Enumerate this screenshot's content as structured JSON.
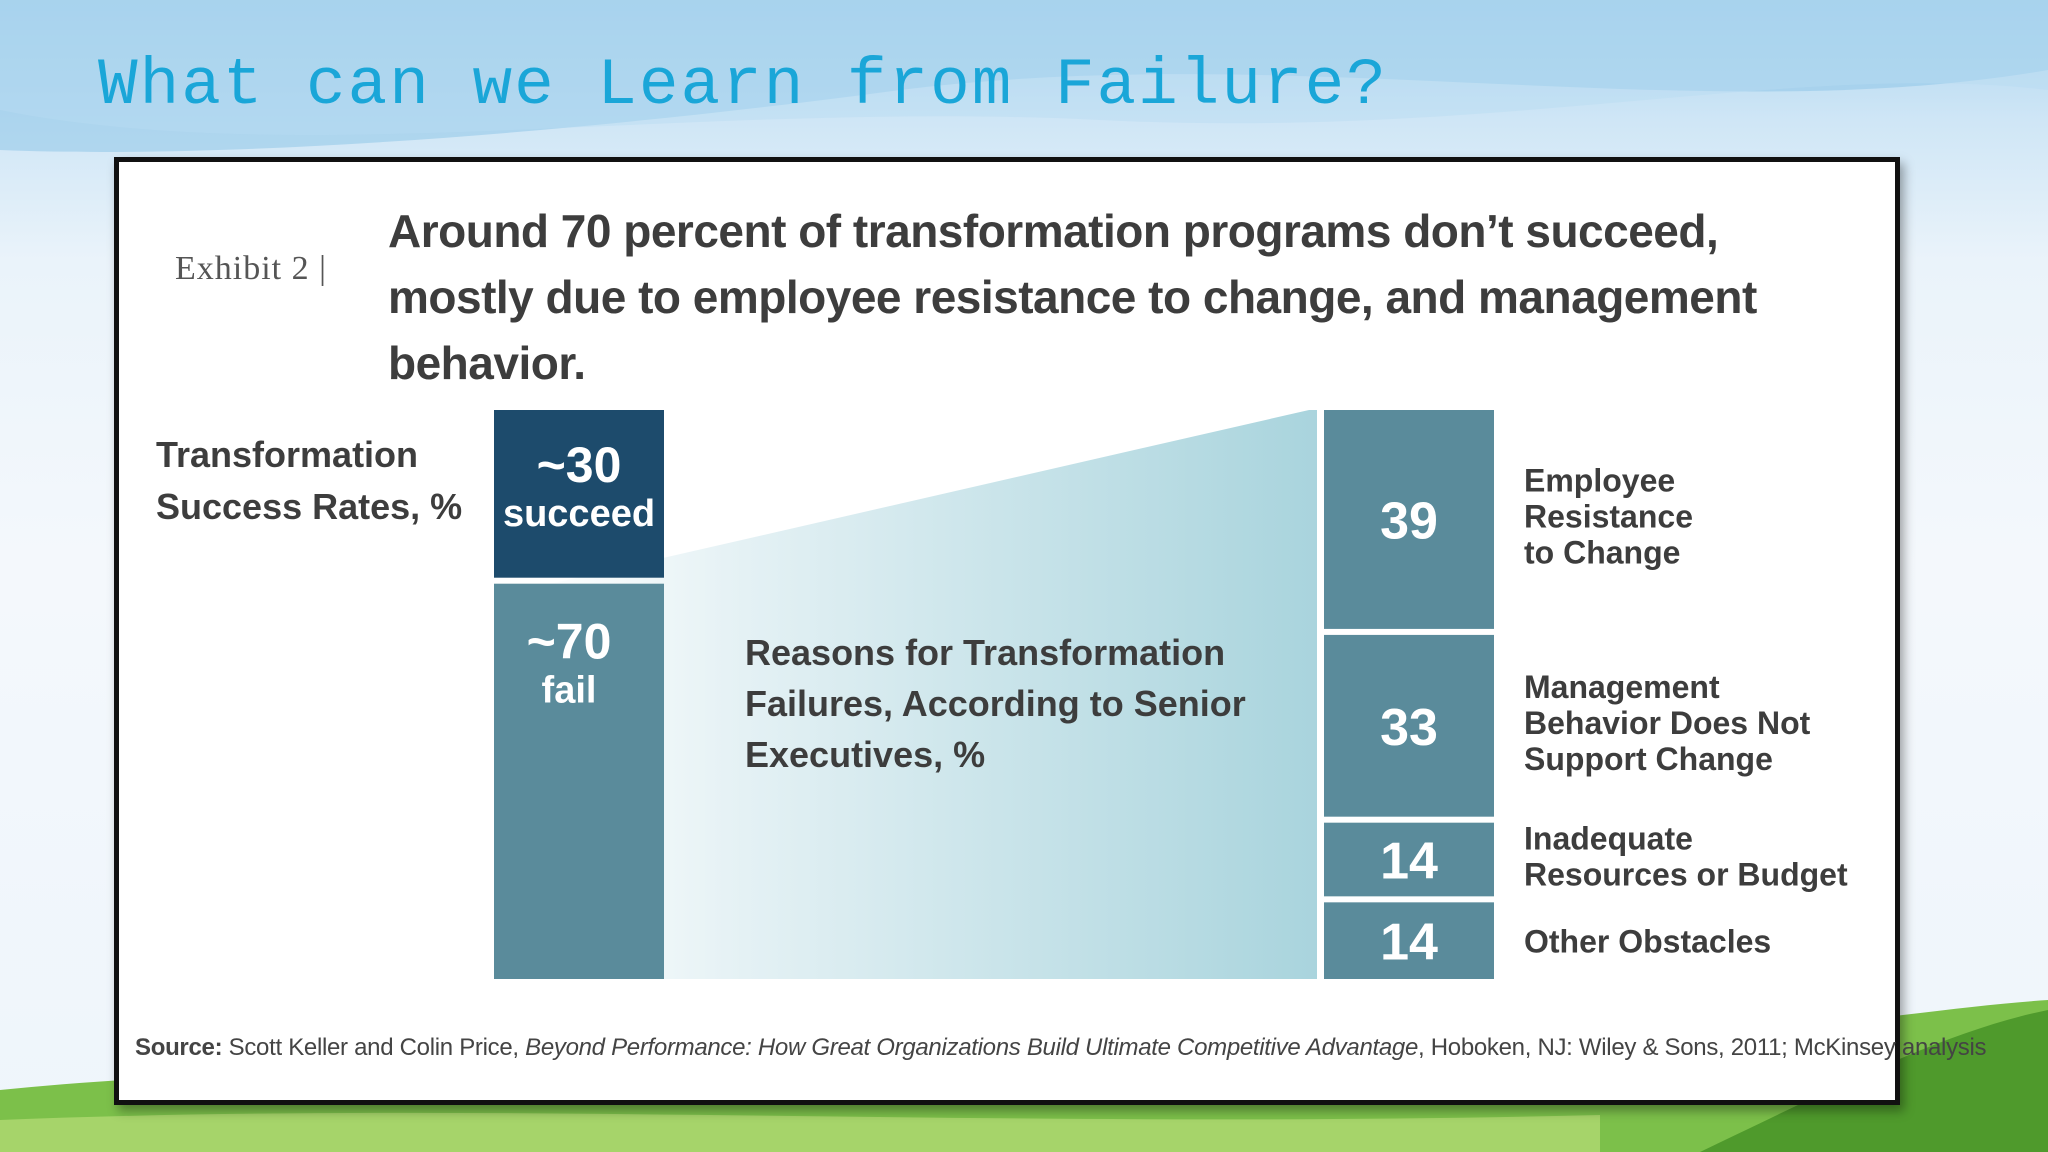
{
  "slide": {
    "title": "What can we Learn from Failure?"
  },
  "exhibit": {
    "label": "Exhibit 2 |",
    "headline": "Around 70 percent of transformation programs don’t succeed, mostly due to employee resistance to change, and management behavior.",
    "source": {
      "prefix": "Source:",
      "authors": " Scott Keller and Colin Price, ",
      "book": "Beyond Performance: How Great Organizations Build Ultimate Competitive Advantage",
      "rest": ", Hoboken, NJ: Wiley & Sons, 2011; McKinsey analysis"
    }
  },
  "colors": {
    "dark_navy": "#1d4b6c",
    "teal": "#5a8b9b",
    "title_blue": "#1aa6d8",
    "wedge_light": "#a9d4dd"
  },
  "chart_data": [
    {
      "type": "bar",
      "stacked": true,
      "label_lines": [
        "Transformation",
        "Success Rates, %"
      ],
      "segments": [
        {
          "value": 30,
          "value_label": "~30",
          "sub_label": "succeed",
          "color": "#1d4b6c"
        },
        {
          "value": 70,
          "value_label": "~70",
          "sub_label": "fail",
          "color": "#5a8b9b"
        }
      ]
    },
    {
      "type": "bar",
      "stacked": true,
      "label_lines": [
        "Reasons for Transformation",
        "Failures, According to Senior",
        "Executives, %"
      ],
      "segments": [
        {
          "value": 39,
          "value_label": "39",
          "category_lines": [
            "Employee",
            "Resistance",
            "to Change"
          ],
          "color": "#5a8b9b"
        },
        {
          "value": 33,
          "value_label": "33",
          "category_lines": [
            "Management",
            "Behavior Does Not",
            "Support Change"
          ],
          "color": "#5a8b9b"
        },
        {
          "value": 14,
          "value_label": "14",
          "category_lines": [
            "Inadequate",
            "Resources or Budget"
          ],
          "color": "#5a8b9b"
        },
        {
          "value": 14,
          "value_label": "14",
          "category_lines": [
            "Other Obstacles"
          ],
          "color": "#5a8b9b"
        }
      ]
    }
  ]
}
